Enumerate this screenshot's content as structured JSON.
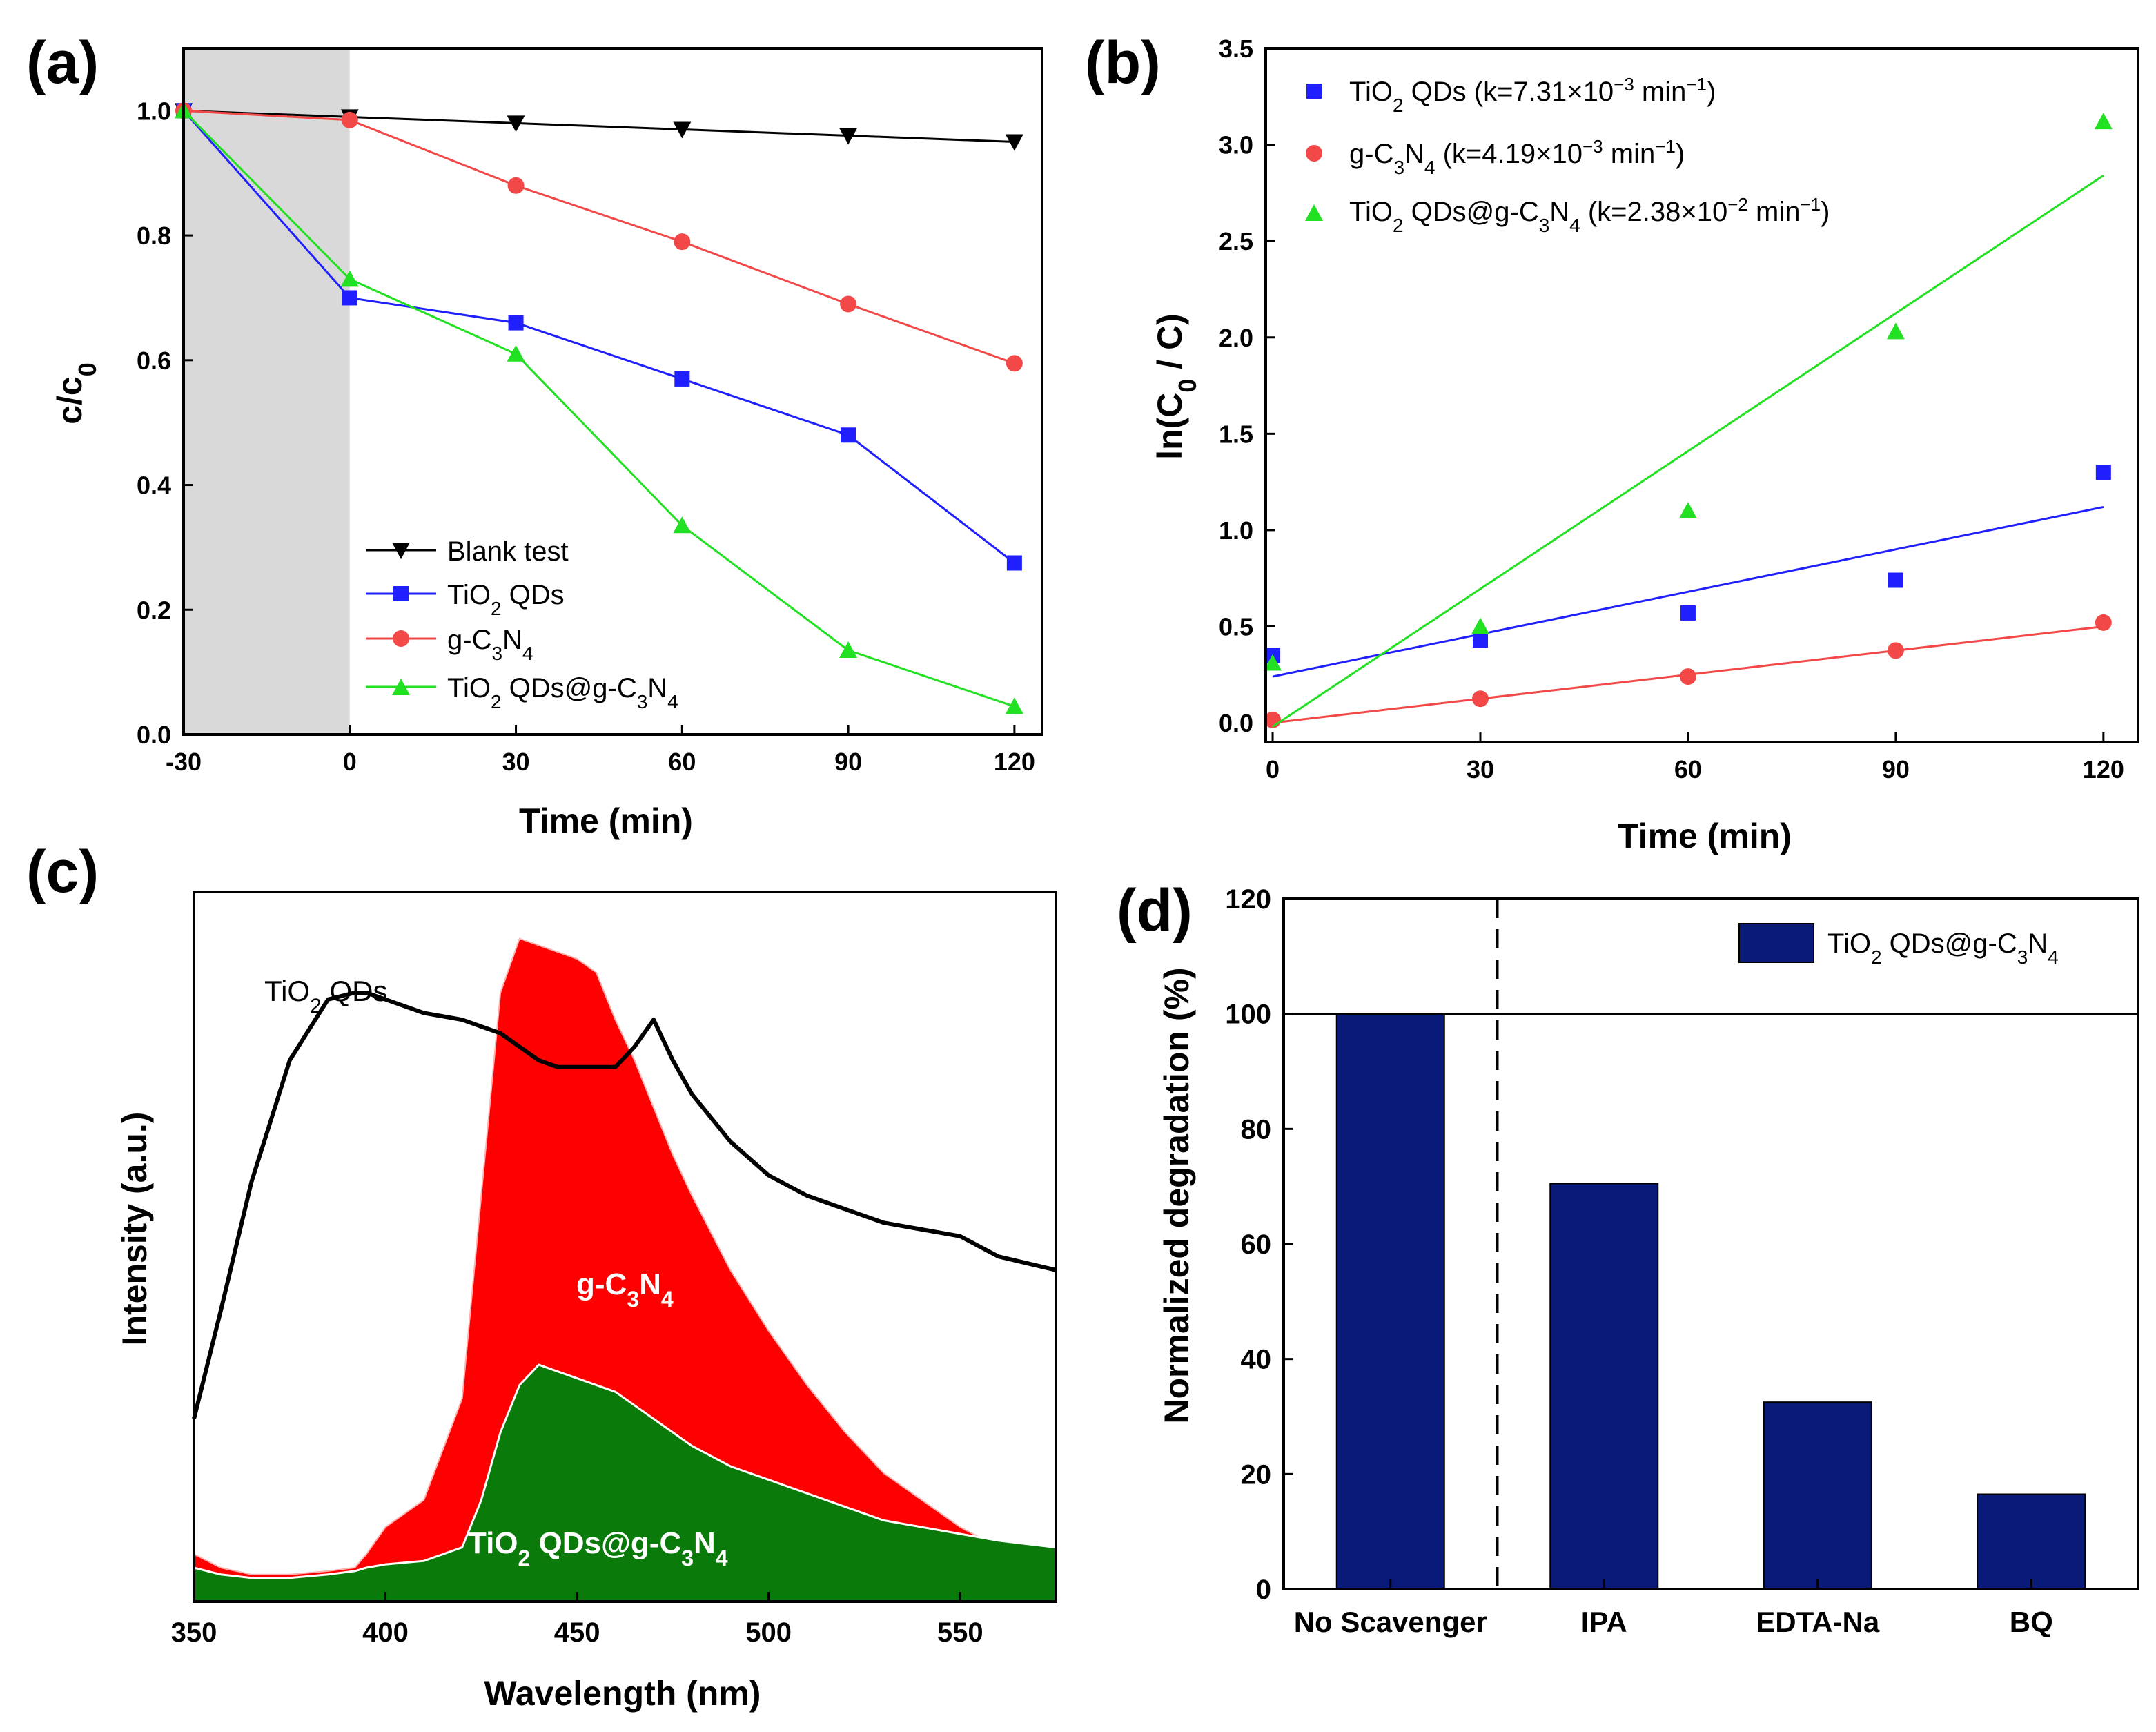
{
  "chart_data": [
    {
      "id": "a",
      "panel_label": "(a)",
      "type": "line",
      "xlabel": "Time (min)",
      "ylabel": "c/c₀",
      "xlim": [
        -30,
        125
      ],
      "ylim": [
        0.0,
        1.1
      ],
      "x_ticks": [
        -30,
        0,
        30,
        60,
        90,
        120
      ],
      "y_ticks": [
        "0.0",
        "0.2",
        "0.4",
        "0.6",
        "0.8",
        "1.0"
      ],
      "dark_region": [
        -30,
        0
      ],
      "x": [
        -30,
        0,
        30,
        60,
        90,
        120
      ],
      "series": [
        {
          "name": "Blank test",
          "color": "#000000",
          "marker": "triangle-down",
          "values": [
            1.0,
            0.99,
            0.98,
            0.97,
            0.96,
            0.95
          ]
        },
        {
          "name": "TiO₂ QDs",
          "color": "#1f1fff",
          "marker": "square",
          "values": [
            1.0,
            0.7,
            0.66,
            0.57,
            0.48,
            0.275
          ]
        },
        {
          "name": "g-C₃N₄",
          "color": "#f24848",
          "marker": "circle",
          "values": [
            1.0,
            0.985,
            0.88,
            0.79,
            0.69,
            0.595
          ]
        },
        {
          "name": "TiO₂ QDs@g-C₃N₄",
          "color": "#22e022",
          "marker": "triangle-up",
          "values": [
            1.0,
            0.73,
            0.61,
            0.335,
            0.135,
            0.045
          ]
        }
      ],
      "legend_position": "bottom-right"
    },
    {
      "id": "b",
      "panel_label": "(b)",
      "type": "scatter",
      "xlabel": "Time (min)",
      "ylabel": "ln(C₀ / C)",
      "xlim": [
        -1,
        125
      ],
      "ylim": [
        -0.1,
        3.5
      ],
      "x_ticks": [
        0,
        30,
        60,
        90,
        120
      ],
      "y_ticks": [
        "0.0",
        "0.5",
        "1.0",
        "1.5",
        "2.0",
        "2.5",
        "3.0",
        "3.5"
      ],
      "x": [
        0,
        30,
        60,
        90,
        120
      ],
      "series": [
        {
          "name": "TiO₂ QDs (k=7.31×10⁻³ min⁻¹)",
          "color": "#1f1fff",
          "marker": "square",
          "values": [
            0.35,
            0.43,
            0.57,
            0.74,
            1.3
          ],
          "fit": [
            0.24,
            1.12
          ]
        },
        {
          "name": "g-C₃N₄ (k=4.19×10⁻³ min⁻¹)",
          "color": "#f24848",
          "marker": "circle",
          "values": [
            0.015,
            0.125,
            0.24,
            0.375,
            0.52
          ],
          "fit": [
            0.0,
            0.5
          ]
        },
        {
          "name": "TiO₂ QDs@g-C₃N₄ (k=2.38×10⁻² min⁻¹)",
          "color": "#22e022",
          "marker": "triangle-up",
          "values": [
            0.31,
            0.5,
            1.1,
            2.03,
            3.12
          ],
          "fit": [
            -0.02,
            2.84
          ]
        }
      ],
      "legend_position": "top-left"
    },
    {
      "id": "c",
      "panel_label": "(c)",
      "type": "area",
      "xlabel": "Wavelength (nm)",
      "ylabel": "Intensity (a.u.)",
      "xlim": [
        350,
        575
      ],
      "ylim": [
        0,
        1.0
      ],
      "x_ticks": [
        350,
        400,
        450,
        500,
        550
      ],
      "x": [
        350,
        357,
        365,
        375,
        385,
        392,
        395,
        400,
        410,
        420,
        425,
        430,
        435,
        440,
        445,
        450,
        455,
        460,
        465,
        470,
        475,
        480,
        490,
        500,
        510,
        520,
        530,
        540,
        550,
        560,
        575
      ],
      "series": [
        {
          "name": "TiO₂ QDs",
          "color": "#000000",
          "style": "line",
          "values": [
            0.27,
            0.43,
            0.62,
            0.8,
            0.89,
            0.9,
            0.9,
            0.89,
            0.87,
            0.86,
            0.85,
            0.84,
            0.82,
            0.8,
            0.79,
            0.79,
            0.79,
            0.79,
            0.82,
            0.86,
            0.8,
            0.75,
            0.68,
            0.63,
            0.6,
            0.58,
            0.56,
            0.55,
            0.54,
            0.51,
            0.49
          ]
        },
        {
          "name": "g-C₃N₄",
          "color": "#ff0000",
          "style": "area",
          "values": [
            0.07,
            0.05,
            0.04,
            0.04,
            0.045,
            0.05,
            0.07,
            0.11,
            0.15,
            0.3,
            0.6,
            0.9,
            0.98,
            0.97,
            0.96,
            0.95,
            0.93,
            0.86,
            0.8,
            0.73,
            0.66,
            0.6,
            0.49,
            0.4,
            0.32,
            0.25,
            0.19,
            0.15,
            0.11,
            0.08,
            0.06
          ]
        },
        {
          "name": "TiO₂ QDs@g-C₃N₄",
          "color": "#0a7a0a",
          "style": "area",
          "values": [
            0.05,
            0.04,
            0.035,
            0.035,
            0.04,
            0.045,
            0.05,
            0.055,
            0.06,
            0.08,
            0.15,
            0.25,
            0.32,
            0.35,
            0.34,
            0.33,
            0.32,
            0.31,
            0.29,
            0.27,
            0.25,
            0.23,
            0.2,
            0.18,
            0.16,
            0.14,
            0.12,
            0.11,
            0.1,
            0.09,
            0.08
          ]
        }
      ],
      "annotations": [
        "TiO₂ QDs",
        "g-C₃N₄",
        "TiO₂ QDs@g-C₃N₄"
      ]
    },
    {
      "id": "d",
      "panel_label": "(d)",
      "type": "bar",
      "xlabel": "",
      "ylabel": "Normalized degradation (%)",
      "ylim": [
        0,
        120
      ],
      "y_ticks": [
        0,
        20,
        40,
        60,
        80,
        100,
        120
      ],
      "categories": [
        "No Scavenger",
        "IPA",
        "EDTA-Na",
        "BQ"
      ],
      "series": [
        {
          "name": "TiO₂ QDs@g-C₃N₄",
          "color": "#0a1a78",
          "values": [
            100,
            70.5,
            32.5,
            16.5
          ]
        }
      ],
      "reference_line": 100,
      "legend_position": "top-right"
    }
  ]
}
